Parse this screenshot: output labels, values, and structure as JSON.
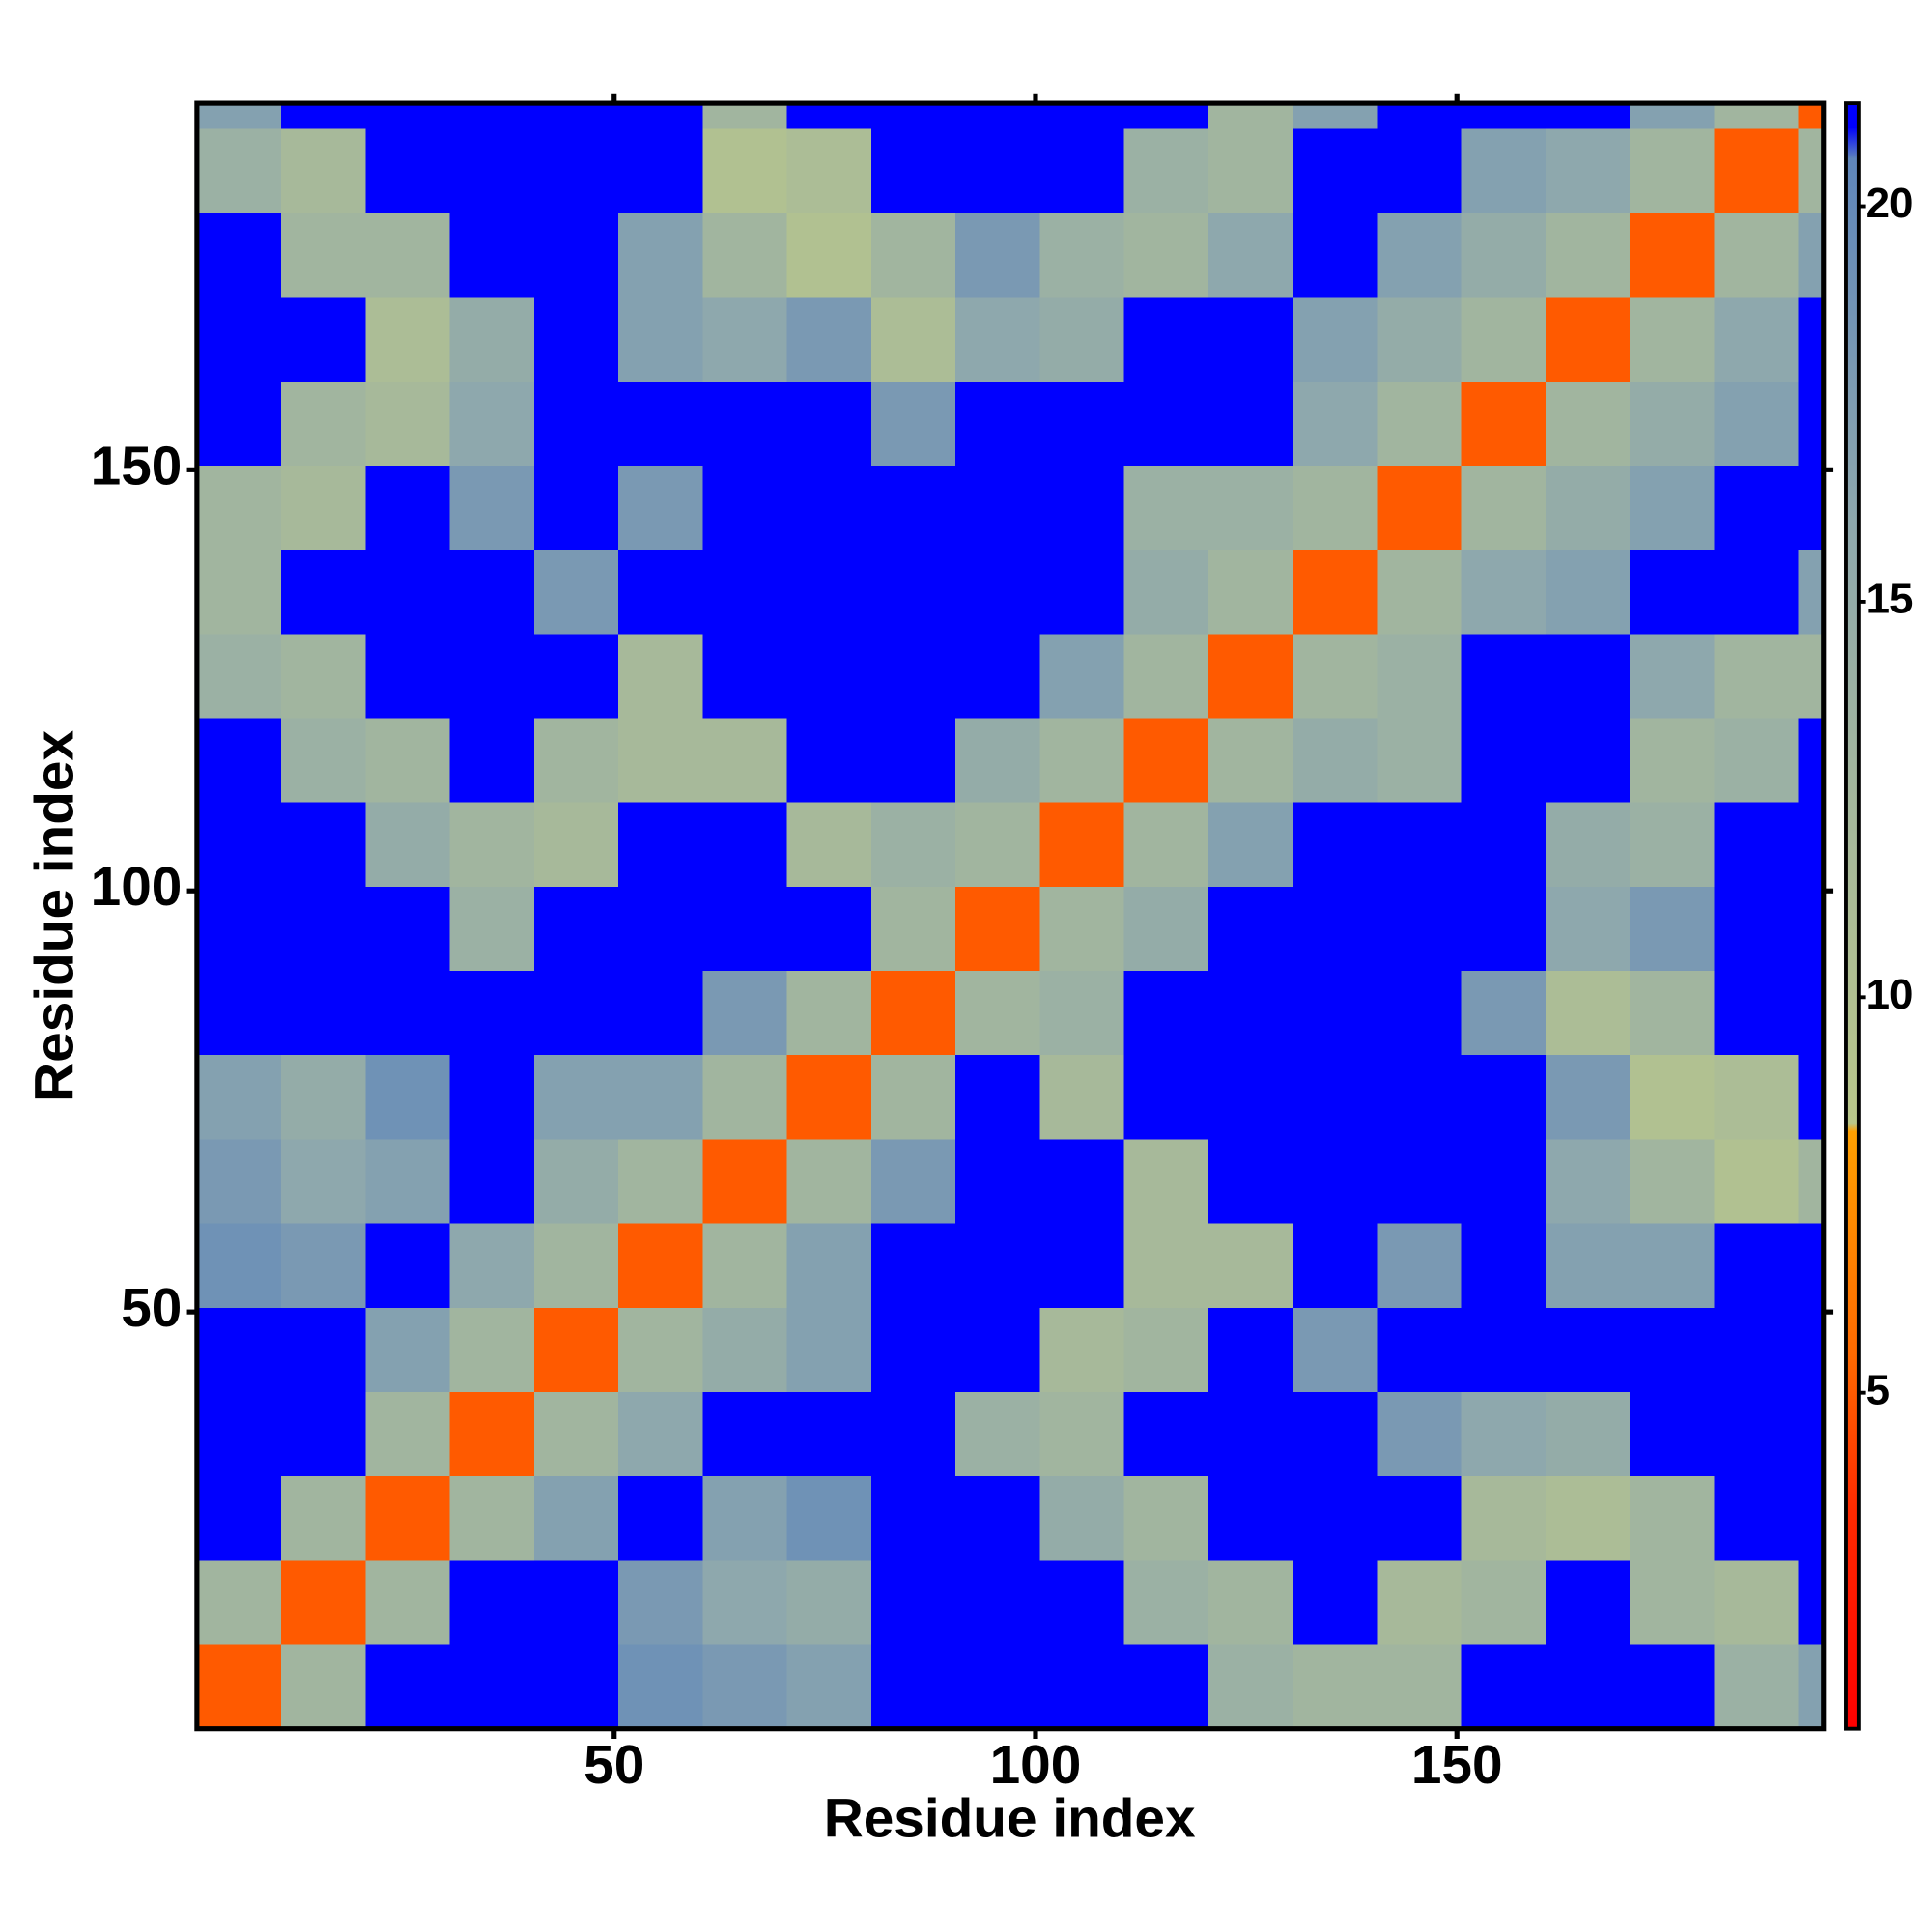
{
  "chart_data": {
    "type": "heatmap",
    "x_label": "Residue index",
    "y_label": "Residue index",
    "x_bins": [
      0.5,
      10.5,
      20.5,
      30.5,
      40.5,
      50.5,
      60.5,
      70.5,
      80.5,
      90.5,
      100.5,
      110.5,
      120.5,
      130.5,
      140.5,
      150.5,
      160.5,
      170.5,
      180.5,
      190.5,
      193.5
    ],
    "y_bins": [
      0.5,
      10.5,
      20.5,
      30.5,
      40.5,
      50.5,
      60.5,
      70.5,
      80.5,
      90.5,
      100.5,
      110.5,
      120.5,
      130.5,
      140.5,
      150.5,
      160.5,
      170.5,
      180.5,
      190.5,
      193.5
    ],
    "xlim": [
      0.5,
      193.5
    ],
    "ylim": [
      0.5,
      193.5
    ],
    "xticks": [
      50,
      100,
      150
    ],
    "yticks": [
      50,
      100,
      150
    ],
    "z": [
      [
        5,
        13,
        21,
        21,
        21,
        19,
        18,
        17,
        21,
        21,
        21,
        21,
        14,
        13,
        13,
        21,
        21,
        21,
        14,
        17
      ],
      [
        13,
        5,
        13,
        21,
        21,
        18,
        16,
        15,
        21,
        21,
        21,
        14,
        13,
        21,
        12,
        13,
        21,
        13,
        12,
        21
      ],
      [
        21,
        13,
        5,
        13,
        17,
        21,
        17,
        19,
        21,
        21,
        15,
        13,
        21,
        21,
        21,
        12,
        11,
        13,
        21,
        21
      ],
      [
        21,
        21,
        13,
        5,
        13,
        16,
        21,
        21,
        21,
        14,
        13,
        21,
        21,
        21,
        18,
        16,
        15,
        21,
        21,
        21
      ],
      [
        21,
        21,
        17,
        13,
        5,
        13,
        15,
        17,
        21,
        21,
        12,
        13,
        21,
        18,
        21,
        21,
        21,
        21,
        21,
        21
      ],
      [
        19,
        18,
        21,
        16,
        13,
        5,
        13,
        17,
        21,
        21,
        21,
        12,
        12,
        21,
        18,
        21,
        17,
        17,
        21,
        21
      ],
      [
        18,
        16,
        17,
        21,
        15,
        13,
        5,
        13,
        18,
        21,
        21,
        12,
        21,
        21,
        21,
        21,
        16,
        13,
        10,
        13
      ],
      [
        17,
        15,
        19,
        21,
        17,
        17,
        13,
        5,
        13,
        21,
        12,
        21,
        21,
        21,
        21,
        21,
        18,
        10,
        11,
        21
      ],
      [
        21,
        21,
        21,
        21,
        21,
        21,
        18,
        13,
        5,
        13,
        14,
        21,
        21,
        21,
        21,
        18,
        11,
        13,
        21,
        21
      ],
      [
        21,
        21,
        21,
        14,
        21,
        21,
        21,
        21,
        13,
        5,
        13,
        15,
        21,
        21,
        21,
        21,
        16,
        18,
        21,
        21
      ],
      [
        21,
        21,
        15,
        13,
        12,
        21,
        21,
        12,
        14,
        13,
        5,
        13,
        17,
        21,
        21,
        21,
        15,
        14,
        21,
        21
      ],
      [
        21,
        14,
        13,
        21,
        13,
        12,
        12,
        21,
        21,
        15,
        13,
        5,
        13,
        15,
        14,
        21,
        21,
        13,
        14,
        21
      ],
      [
        14,
        13,
        21,
        21,
        21,
        12,
        21,
        21,
        21,
        21,
        17,
        13,
        5,
        13,
        14,
        21,
        21,
        16,
        13,
        13
      ],
      [
        13,
        21,
        21,
        21,
        18,
        21,
        21,
        21,
        21,
        21,
        21,
        15,
        13,
        5,
        13,
        16,
        17,
        21,
        21,
        17
      ],
      [
        13,
        12,
        21,
        18,
        21,
        18,
        21,
        21,
        21,
        21,
        21,
        14,
        14,
        13,
        5,
        13,
        15,
        17,
        21,
        21
      ],
      [
        21,
        13,
        12,
        16,
        21,
        21,
        21,
        21,
        18,
        21,
        21,
        21,
        21,
        16,
        13,
        5,
        13,
        15,
        17,
        21
      ],
      [
        21,
        21,
        11,
        15,
        21,
        17,
        16,
        18,
        11,
        16,
        15,
        21,
        21,
        17,
        15,
        13,
        5,
        13,
        16,
        21
      ],
      [
        21,
        13,
        13,
        21,
        21,
        17,
        13,
        10,
        13,
        18,
        14,
        13,
        16,
        21,
        17,
        15,
        13,
        5,
        13,
        17
      ],
      [
        14,
        12,
        21,
        21,
        21,
        21,
        10,
        11,
        21,
        21,
        21,
        14,
        13,
        21,
        21,
        17,
        16,
        13,
        5,
        13
      ],
      [
        17,
        21,
        21,
        21,
        21,
        21,
        13,
        21,
        21,
        21,
        21,
        21,
        13,
        17,
        21,
        21,
        21,
        17,
        13,
        5
      ]
    ],
    "zlim": [
      0.75,
      21.3
    ],
    "zticks": [
      5,
      10,
      15,
      20
    ],
    "colorscale": [
      [
        0.75,
        "#ff0000"
      ],
      [
        3.5,
        "#ff2a00"
      ],
      [
        5.5,
        "#ff6a00"
      ],
      [
        8.3,
        "#ffa000"
      ],
      [
        8.4,
        "#b9c78a"
      ],
      [
        12,
        "#a7b99a"
      ],
      [
        16,
        "#8ea8ad"
      ],
      [
        20.6,
        "#5f86bb"
      ],
      [
        21,
        "#0000ff"
      ]
    ]
  }
}
